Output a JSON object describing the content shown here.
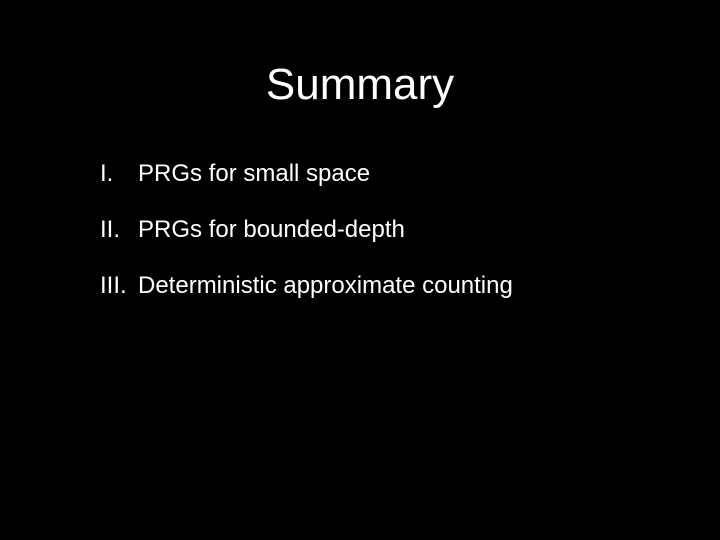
{
  "slide": {
    "title": "Summary",
    "items": [
      {
        "numeral": "I.",
        "text": "PRGs for small space"
      },
      {
        "numeral": "II.",
        "text": "PRGs for bounded-depth"
      },
      {
        "numeral": "III.",
        "text": "Deterministic approximate counting"
      }
    ],
    "background_color": "#000000",
    "text_color": "#ffffff",
    "title_fontsize": 44,
    "body_fontsize": 24,
    "font_family": "Arial"
  }
}
